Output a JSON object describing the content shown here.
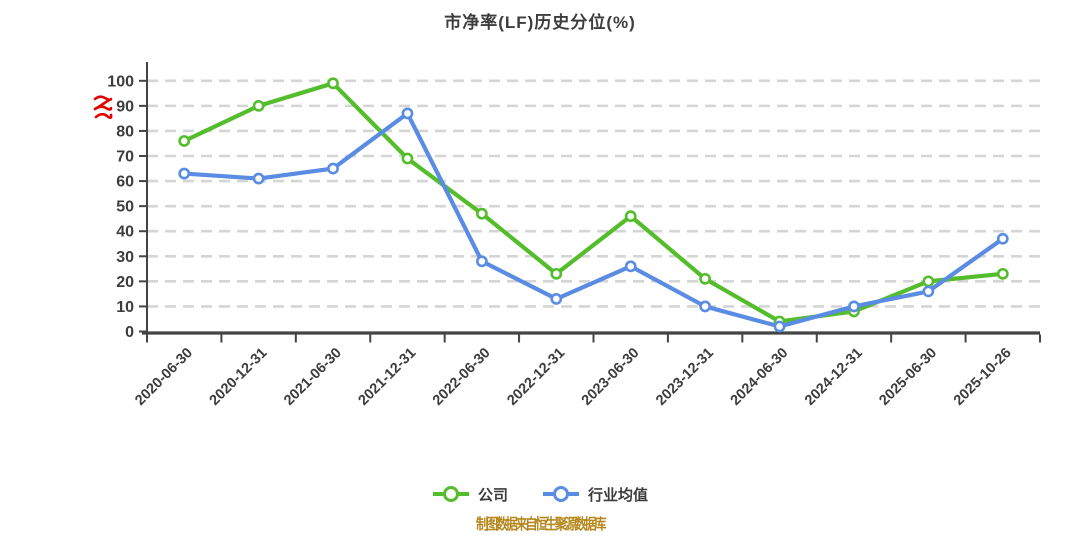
{
  "title": "市净率(LF)历史分位(%)",
  "legend": {
    "items": [
      {
        "label": "公司",
        "color": "#54bd2c"
      },
      {
        "label": "行业均值",
        "color": "#5b8ce4"
      }
    ]
  },
  "footer": "制图数据来自恒生聚源数据库",
  "watermark_icon": "red-squiggle-glyph",
  "colors": {
    "company_line": "#54bd2c",
    "industry_line": "#5b8ce4",
    "axis": "#444444",
    "gridline": "#d5d5d5",
    "text": "#3d3d3d",
    "footer_text": "#b5871c",
    "watermark_red": "#e60000",
    "marker_fill": "#ffffff"
  },
  "chart_data": {
    "type": "line",
    "title": "市净率(LF)历史分位(%)",
    "categories": [
      "2020-06-30",
      "2020-12-31",
      "2021-06-30",
      "2021-12-31",
      "2022-06-30",
      "2022-12-31",
      "2023-06-30",
      "2023-12-31",
      "2024-06-30",
      "2024-12-31",
      "2025-06-30",
      "2025-10-26"
    ],
    "series": [
      {
        "name": "公司",
        "color": "#54bd2c",
        "values": [
          76,
          90,
          99,
          69,
          47,
          23,
          46,
          21,
          4,
          8,
          20,
          23
        ]
      },
      {
        "name": "行业均值",
        "color": "#5b8ce4",
        "values": [
          63,
          61,
          65,
          87,
          28,
          13,
          26,
          10,
          2,
          10,
          16,
          37
        ]
      }
    ],
    "xlabel": "",
    "ylabel": "",
    "ylim": [
      0,
      100
    ],
    "yticks": [
      0,
      10,
      20,
      30,
      40,
      50,
      60,
      70,
      80,
      90,
      100
    ],
    "grid": "horizontal-dashed",
    "legend_position": "bottom",
    "x_tick_label_rotation": -45,
    "marker": "circle-white-fill"
  }
}
